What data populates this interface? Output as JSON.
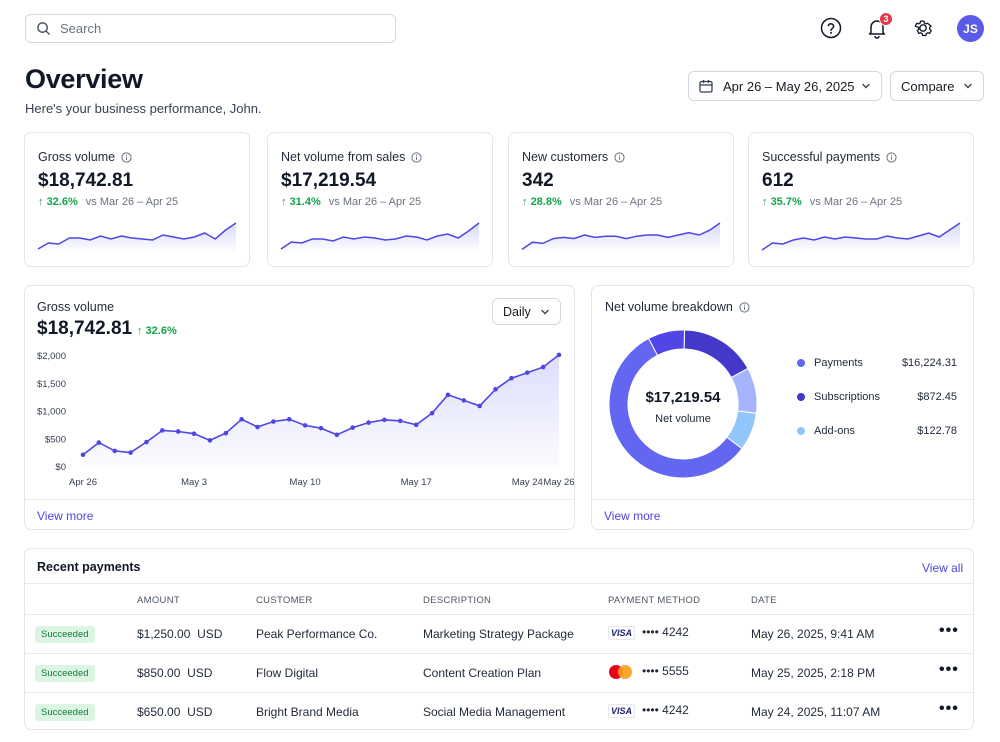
{
  "header": {
    "search_placeholder": "Search",
    "notifications_count": "3",
    "avatar_initials": "JS",
    "title": "Overview",
    "subtitle": "Here's your business performance, John.",
    "date_range": "Apr 26 – May 26, 2025",
    "compare_label": "Compare"
  },
  "kpis": [
    {
      "label": "Gross volume",
      "value": "$18,742.81",
      "delta": "32.6%",
      "period": "vs Mar 26 – Apr 25",
      "spark": [
        4,
        10,
        9,
        15,
        15,
        13,
        17,
        14,
        17,
        15,
        14,
        13,
        18,
        16,
        14,
        16,
        20,
        14,
        23,
        30
      ]
    },
    {
      "label": "Net volume from sales",
      "value": "$17,219.54",
      "delta": "31.4%",
      "period": "vs Mar 26 – Apr 25",
      "spark": [
        4,
        11,
        10,
        14,
        14,
        12,
        16,
        14,
        16,
        15,
        13,
        14,
        17,
        16,
        13,
        17,
        19,
        15,
        22,
        30
      ]
    },
    {
      "label": "New customers",
      "value": "342",
      "delta": "28.8%",
      "period": "vs Mar 26 – Apr 25",
      "spark": [
        3,
        9,
        8,
        12,
        13,
        12,
        15,
        13,
        14,
        14,
        12,
        14,
        15,
        15,
        13,
        15,
        17,
        15,
        19,
        25
      ]
    },
    {
      "label": "Successful payments",
      "value": "612",
      "delta": "35.7%",
      "period": "vs Mar 26 – Apr 25",
      "spark": [
        3,
        10,
        9,
        13,
        15,
        13,
        16,
        14,
        16,
        15,
        14,
        14,
        17,
        15,
        14,
        17,
        20,
        16,
        23,
        30
      ]
    }
  ],
  "gross_panel": {
    "title": "Gross volume",
    "value": "$18,742.81",
    "delta": "32.6%",
    "interval": "Daily",
    "view_more": "View more"
  },
  "chart_data": {
    "type": "area",
    "title": "Gross volume",
    "x": [
      "Apr 26",
      "Apr 27",
      "Apr 28",
      "Apr 29",
      "Apr 30",
      "May 1",
      "May 2",
      "May 3",
      "May 4",
      "May 5",
      "May 6",
      "May 7",
      "May 8",
      "May 9",
      "May 10",
      "May 11",
      "May 12",
      "May 13",
      "May 14",
      "May 15",
      "May 16",
      "May 17",
      "May 18",
      "May 19",
      "May 20",
      "May 21",
      "May 22",
      "May 23",
      "May 24",
      "May 25",
      "May 26"
    ],
    "series": [
      {
        "values": [
          220,
          440,
          290,
          260,
          450,
          660,
          640,
          600,
          480,
          610,
          860,
          720,
          820,
          860,
          750,
          700,
          580,
          710,
          800,
          850,
          830,
          760,
          970,
          1300,
          1200,
          1100,
          1400,
          1600,
          1700,
          1800,
          2020
        ]
      }
    ],
    "x_ticks": [
      "Apr 26",
      "May 3",
      "May 10",
      "May 17",
      "May 24",
      "May 26"
    ],
    "y_ticks": [
      "$0",
      "$500",
      "$1,000",
      "$1,500",
      "$2,000"
    ],
    "ylim": [
      0,
      2000
    ],
    "grid": false,
    "color": "#4f46e5"
  },
  "breakdown": {
    "title": "Net volume breakdown",
    "center_value": "$17,219.54",
    "center_label": "Net volume",
    "view_more": "View more",
    "items": [
      {
        "name": "Payments",
        "value": "$16,224.31",
        "color": "#6366f1"
      },
      {
        "name": "Subscriptions",
        "value": "$872.45",
        "color": "#4338ca"
      },
      {
        "name": "Add-ons",
        "value": "$122.78",
        "color": "#93c5fd"
      }
    ],
    "donut": [
      {
        "value": 16.7,
        "color": "#4338ca"
      },
      {
        "value": 10,
        "color": "#a5b4fc"
      },
      {
        "value": 8.3,
        "color": "#93c5fd"
      },
      {
        "value": 57,
        "color": "#6366f1"
      },
      {
        "value": 8,
        "color": "#4f46e5"
      }
    ]
  },
  "payments": {
    "title": "Recent payments",
    "view_all": "View all",
    "columns": [
      "AMOUNT",
      "CUSTOMER",
      "DESCRIPTION",
      "PAYMENT METHOD",
      "DATE"
    ],
    "rows": [
      {
        "status": "Succeeded",
        "amount": "$1,250.00",
        "currency": "USD",
        "customer": "Peak Performance Co.",
        "description": "Marketing Strategy Package",
        "card_brand": "VISA",
        "card_last4": "•••• 4242",
        "date": "May 26, 2025, 9:41 AM"
      },
      {
        "status": "Succeeded",
        "amount": "$850.00",
        "currency": "USD",
        "customer": "Flow Digital",
        "description": "Content Creation Plan",
        "card_brand": "mastercard",
        "card_last4": "•••• 5555",
        "date": "May 25, 2025, 2:18 PM"
      },
      {
        "status": "Succeeded",
        "amount": "$650.00",
        "currency": "USD",
        "customer": "Bright Brand Media",
        "description": "Social Media Management",
        "card_brand": "VISA",
        "card_last4": "•••• 4242",
        "date": "May 24, 2025, 11:07 AM"
      }
    ],
    "more_label": "•••"
  }
}
